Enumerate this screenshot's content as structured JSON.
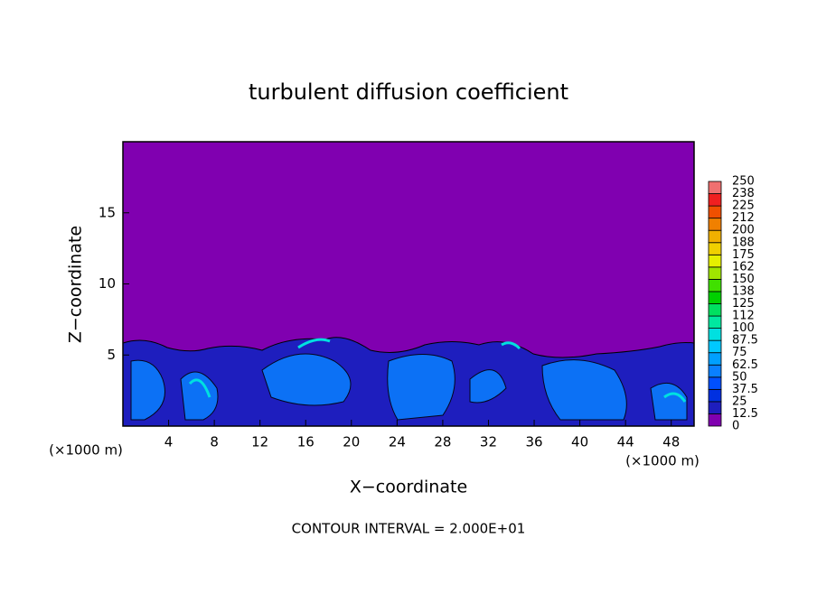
{
  "chart_data": {
    "type": "contour",
    "title": "turbulent diffusion coefficient",
    "x_label": "X−coordinate",
    "y_label": "Z−coordinate",
    "x_unit": "(×1000 m)",
    "annotation": "CONTOUR INTERVAL = 2.000E+01",
    "xlim": [
      0,
      50
    ],
    "ylim": [
      0,
      20
    ],
    "xticks": [
      4,
      8,
      12,
      16,
      20,
      24,
      28,
      32,
      36,
      40,
      44,
      48
    ],
    "yticks": [
      5,
      10,
      15
    ],
    "colorbar": {
      "levels": [
        0,
        12.5,
        25,
        37.5,
        50,
        62.5,
        75,
        87.5,
        100,
        112,
        125,
        138,
        150,
        162,
        175,
        188,
        200,
        212,
        225,
        238,
        250
      ],
      "colors": [
        "#8000b0",
        "#1e1ebe",
        "#0030e0",
        "#0050ff",
        "#0a80ff",
        "#00a0ff",
        "#00c8ff",
        "#00e0e0",
        "#00e8a0",
        "#00e060",
        "#00d000",
        "#40e000",
        "#a0e600",
        "#e6f000",
        "#f0d000",
        "#f0b000",
        "#f08000",
        "#f05000",
        "#f02020",
        "#f07070"
      ]
    }
  }
}
